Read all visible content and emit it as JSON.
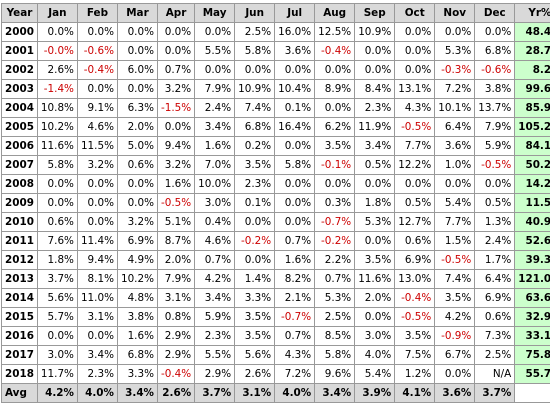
{
  "table": {
    "headers": [
      "Year",
      "Jan",
      "Feb",
      "Mar",
      "Apr",
      "May",
      "Jun",
      "Jul",
      "Aug",
      "Sep",
      "Oct",
      "Nov",
      "Dec",
      "Yr%"
    ],
    "rows": [
      {
        "year": "2000",
        "cells": [
          "0.0%",
          "0.0%",
          "0.0%",
          "0.0%",
          "0.0%",
          "2.5%",
          "16.0%",
          "12.5%",
          "10.9%",
          "0.0%",
          "0.0%",
          "0.0%"
        ],
        "total": "48.4%"
      },
      {
        "year": "2001",
        "cells": [
          "-0.0%",
          "-0.6%",
          "0.0%",
          "0.0%",
          "5.5%",
          "5.8%",
          "3.6%",
          "-0.4%",
          "0.0%",
          "0.0%",
          "5.3%",
          "6.8%"
        ],
        "total": "28.7%"
      },
      {
        "year": "2002",
        "cells": [
          "2.6%",
          "-0.4%",
          "6.0%",
          "0.7%",
          "0.0%",
          "0.0%",
          "0.0%",
          "0.0%",
          "0.0%",
          "0.0%",
          "-0.3%",
          "-0.6%"
        ],
        "total": "8.2%"
      },
      {
        "year": "2003",
        "cells": [
          "-1.4%",
          "0.0%",
          "0.0%",
          "3.2%",
          "7.9%",
          "10.9%",
          "10.4%",
          "8.9%",
          "8.4%",
          "13.1%",
          "7.2%",
          "3.8%"
        ],
        "total": "99.6%"
      },
      {
        "year": "2004",
        "cells": [
          "10.8%",
          "9.1%",
          "6.3%",
          "-1.5%",
          "2.4%",
          "7.4%",
          "0.1%",
          "0.0%",
          "2.3%",
          "4.3%",
          "10.1%",
          "13.7%"
        ],
        "total": "85.9%"
      },
      {
        "year": "2005",
        "cells": [
          "10.2%",
          "4.6%",
          "2.0%",
          "0.0%",
          "3.4%",
          "6.8%",
          "16.4%",
          "6.2%",
          "11.9%",
          "-0.5%",
          "6.4%",
          "7.9%"
        ],
        "total": "105.2%"
      },
      {
        "year": "2006",
        "cells": [
          "11.6%",
          "11.5%",
          "5.0%",
          "9.4%",
          "1.6%",
          "0.2%",
          "0.0%",
          "3.5%",
          "3.4%",
          "7.7%",
          "3.6%",
          "5.9%"
        ],
        "total": "84.1%"
      },
      {
        "year": "2007",
        "cells": [
          "5.8%",
          "3.2%",
          "0.6%",
          "3.2%",
          "7.0%",
          "3.5%",
          "5.8%",
          "-0.1%",
          "0.5%",
          "12.2%",
          "1.0%",
          "-0.5%"
        ],
        "total": "50.2%"
      },
      {
        "year": "2008",
        "cells": [
          "0.0%",
          "0.0%",
          "0.0%",
          "1.6%",
          "10.0%",
          "2.3%",
          "0.0%",
          "0.0%",
          "0.0%",
          "0.0%",
          "0.0%",
          "0.0%"
        ],
        "total": "14.2%"
      },
      {
        "year": "2009",
        "cells": [
          "0.0%",
          "0.0%",
          "0.0%",
          "-0.5%",
          "3.0%",
          "0.1%",
          "0.0%",
          "0.3%",
          "1.8%",
          "0.5%",
          "5.4%",
          "0.5%"
        ],
        "total": "11.5%"
      },
      {
        "year": "2010",
        "cells": [
          "0.6%",
          "0.0%",
          "3.2%",
          "5.1%",
          "0.4%",
          "0.0%",
          "0.0%",
          "-0.7%",
          "5.3%",
          "12.7%",
          "7.7%",
          "1.3%"
        ],
        "total": "40.9%"
      },
      {
        "year": "2011",
        "cells": [
          "7.6%",
          "11.4%",
          "6.9%",
          "8.7%",
          "4.6%",
          "-0.2%",
          "0.7%",
          "-0.2%",
          "0.0%",
          "0.6%",
          "1.5%",
          "2.4%"
        ],
        "total": "52.6%"
      },
      {
        "year": "2012",
        "cells": [
          "1.8%",
          "9.4%",
          "4.9%",
          "2.0%",
          "0.7%",
          "0.0%",
          "1.6%",
          "2.2%",
          "3.5%",
          "6.9%",
          "-0.5%",
          "1.7%"
        ],
        "total": "39.3%"
      },
      {
        "year": "2013",
        "cells": [
          "3.7%",
          "8.1%",
          "10.2%",
          "7.9%",
          "4.2%",
          "1.4%",
          "8.2%",
          "0.7%",
          "11.6%",
          "13.0%",
          "7.4%",
          "6.4%"
        ],
        "total": "121.0%"
      },
      {
        "year": "2014",
        "cells": [
          "5.6%",
          "11.0%",
          "4.8%",
          "3.1%",
          "3.4%",
          "3.3%",
          "2.1%",
          "5.3%",
          "2.0%",
          "-0.4%",
          "3.5%",
          "6.9%"
        ],
        "total": "63.6%"
      },
      {
        "year": "2015",
        "cells": [
          "5.7%",
          "3.1%",
          "3.8%",
          "0.8%",
          "5.9%",
          "3.5%",
          "-0.7%",
          "2.5%",
          "0.0%",
          "-0.5%",
          "4.2%",
          "0.6%"
        ],
        "total": "32.9%"
      },
      {
        "year": "2016",
        "cells": [
          "0.0%",
          "0.0%",
          "1.6%",
          "2.9%",
          "2.3%",
          "3.5%",
          "0.7%",
          "8.5%",
          "3.0%",
          "3.5%",
          "-0.9%",
          "7.3%"
        ],
        "total": "33.1%"
      },
      {
        "year": "2017",
        "cells": [
          "3.0%",
          "3.4%",
          "6.8%",
          "2.9%",
          "5.5%",
          "5.6%",
          "4.3%",
          "5.8%",
          "4.0%",
          "7.5%",
          "6.7%",
          "2.5%"
        ],
        "total": "75.8%"
      },
      {
        "year": "2018",
        "cells": [
          "11.7%",
          "2.3%",
          "3.3%",
          "-0.4%",
          "2.9%",
          "2.6%",
          "7.2%",
          "9.6%",
          "5.4%",
          "1.2%",
          "0.0%",
          "N/A"
        ],
        "total": "55.7%"
      }
    ],
    "avg": {
      "label": "Avg",
      "cells": [
        "4.2%",
        "4.0%",
        "3.4%",
        "2.6%",
        "3.7%",
        "3.1%",
        "4.0%",
        "3.4%",
        "3.9%",
        "4.1%",
        "3.6%",
        "3.7%"
      ],
      "total": ""
    }
  },
  "colors": {
    "negative": "#cc0000",
    "year_total_bg": "#ccffcc",
    "header_bg": "#d9d9d9",
    "border": "#999999"
  }
}
